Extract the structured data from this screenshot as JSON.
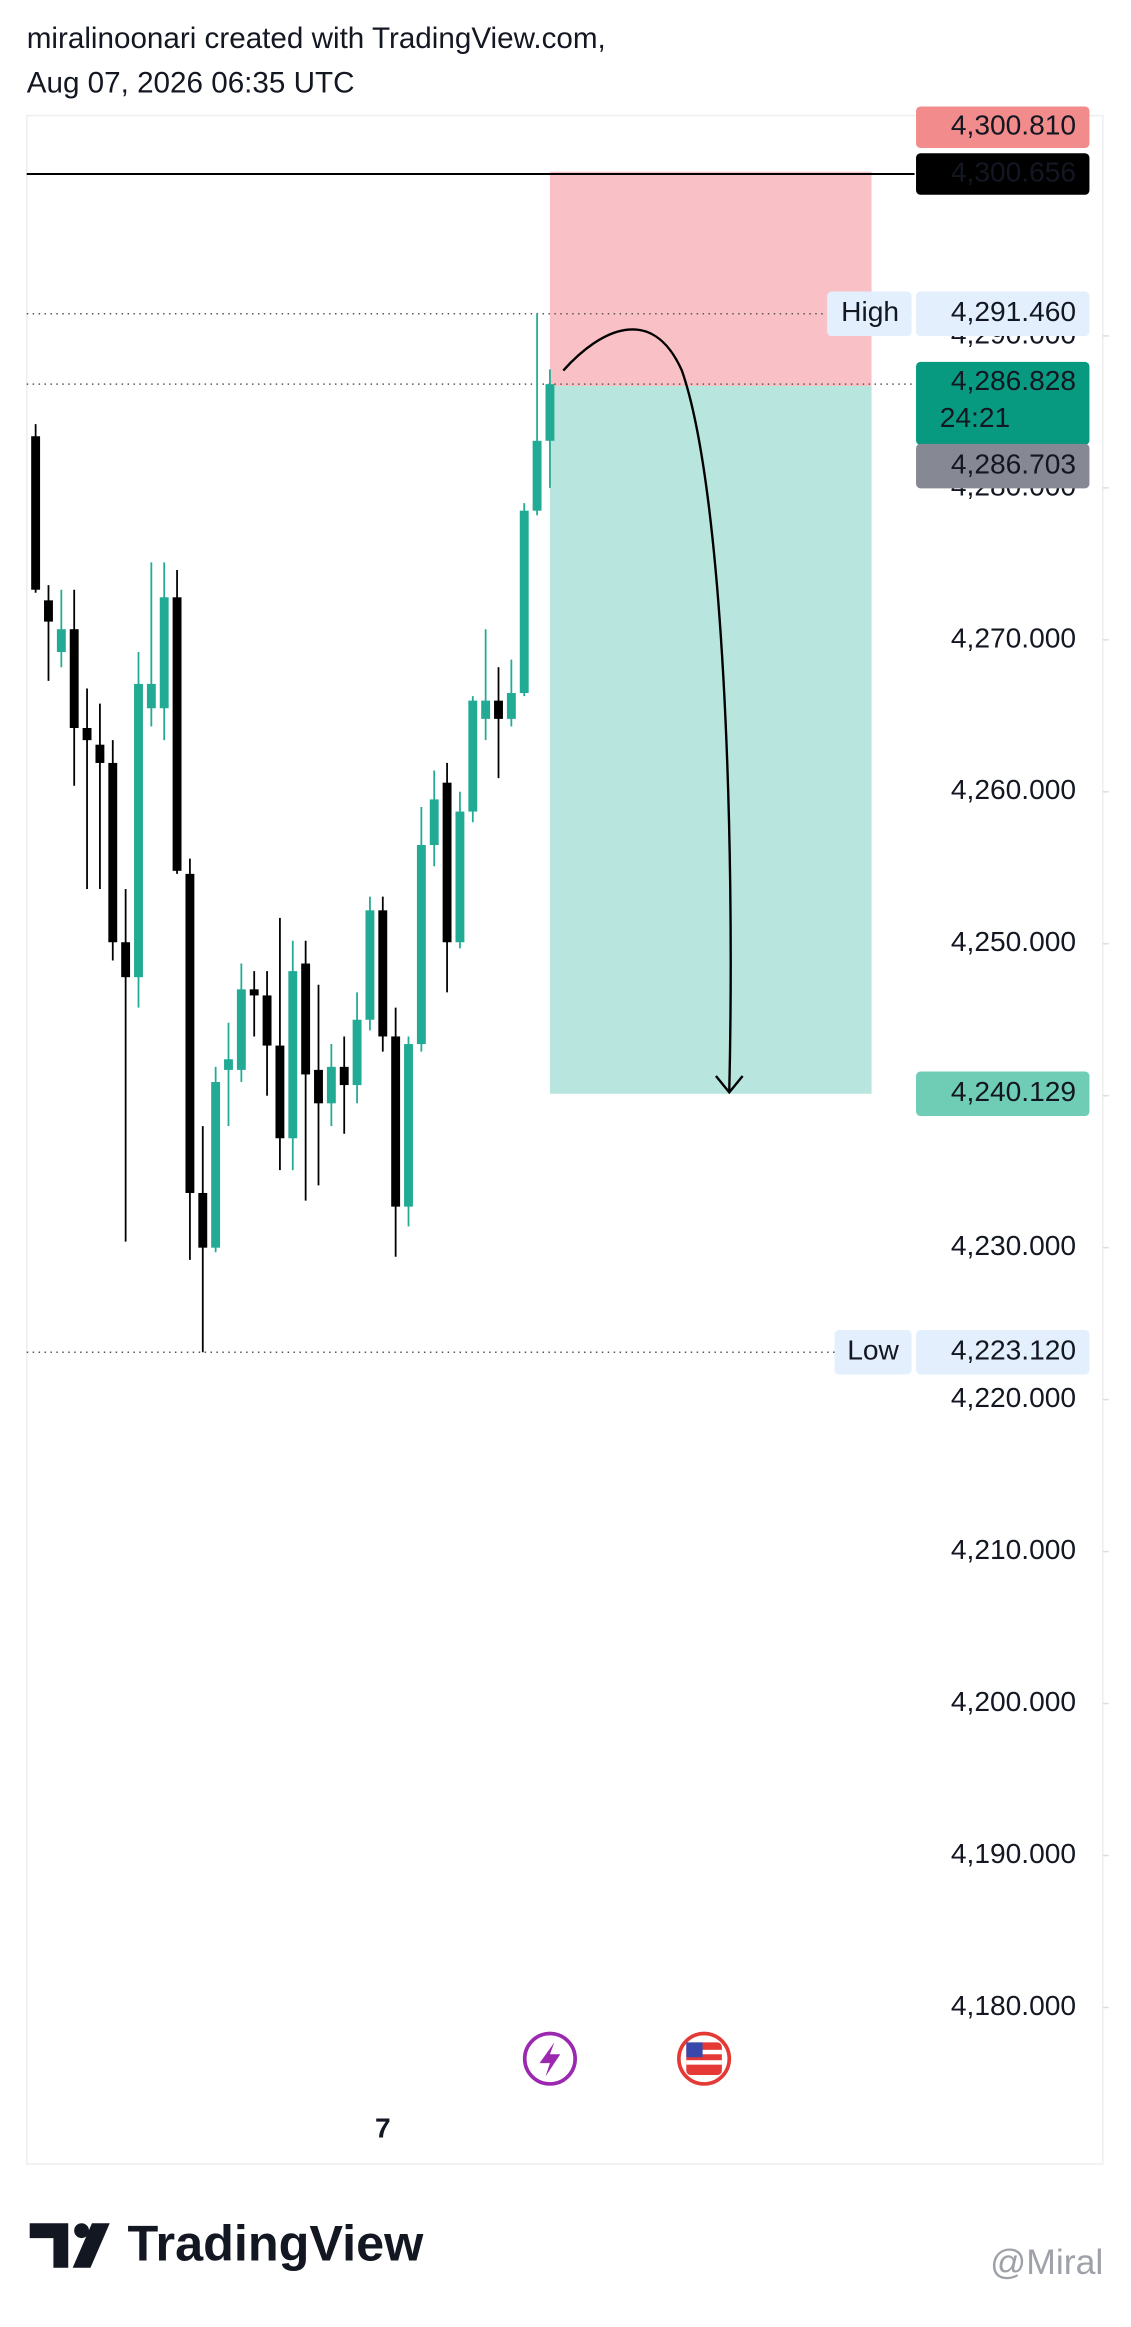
{
  "header": {
    "author": "miralinoonari created with TradingView.com,",
    "date": "Aug 07, 2026 06:35 UTC"
  },
  "footer": {
    "brand": "TradingView",
    "watermark": "@Miral"
  },
  "chart_data": {
    "type": "candlestick",
    "up_color": "#22ab94",
    "down_color": "#000000",
    "categories": [
      null,
      null,
      null,
      null,
      null,
      null,
      null,
      null,
      null,
      null,
      null,
      null,
      null,
      null,
      null,
      null,
      null,
      null,
      null,
      null,
      null,
      null,
      null,
      null,
      null,
      null,
      null,
      "7",
      null,
      null,
      null,
      null,
      null,
      null,
      null,
      null,
      null,
      null,
      null,
      null,
      null
    ],
    "open": [
      4283.4,
      4272.6,
      4269.2,
      4270.7,
      4264.2,
      4263.1,
      4261.9,
      4250.1,
      4247.8,
      4265.5,
      4265.5,
      4272.8,
      4254.6,
      4233.6,
      4230.0,
      4241.7,
      4241.7,
      4247.0,
      4246.6,
      4243.3,
      4237.2,
      4248.7,
      4241.7,
      4239.5,
      4241.9,
      4240.7,
      4245.0,
      4252.2,
      4243.9,
      4232.7,
      4243.4,
      4256.5,
      4260.6,
      4250.1,
      4258.7,
      4264.8,
      4266.0,
      4264.8,
      4266.5,
      4278.5,
      4283.1
    ],
    "high": [
      4284.2,
      4273.6,
      4273.3,
      4273.3,
      4266.8,
      4265.8,
      4263.4,
      4253.6,
      4269.2,
      4275.1,
      4275.1,
      4274.6,
      4255.6,
      4238.0,
      4241.9,
      4244.8,
      4248.7,
      4248.2,
      4248.2,
      4251.7,
      4250.2,
      4250.2,
      4247.3,
      4243.4,
      4243.9,
      4246.8,
      4253.1,
      4253.1,
      4245.8,
      4243.9,
      4259.0,
      4261.4,
      4261.9,
      4260.0,
      4266.3,
      4270.7,
      4268.2,
      4268.7,
      4279.0,
      4291.46,
      4287.8
    ],
    "low": [
      4273.1,
      4267.3,
      4268.2,
      4260.4,
      4253.6,
      4253.6,
      4248.9,
      4230.4,
      4245.8,
      4264.3,
      4263.4,
      4254.6,
      4229.2,
      4223.12,
      4229.7,
      4238.0,
      4240.9,
      4243.9,
      4240.0,
      4235.1,
      4235.1,
      4233.1,
      4234.1,
      4238.0,
      4237.5,
      4239.5,
      4244.3,
      4242.9,
      4229.4,
      4231.4,
      4242.9,
      4255.1,
      4246.8,
      4249.7,
      4258.0,
      4263.4,
      4260.9,
      4264.3,
      4266.3,
      4278.2,
      4280.0
    ],
    "close": [
      4273.3,
      4271.2,
      4270.7,
      4264.2,
      4263.4,
      4261.9,
      4250.1,
      4247.8,
      4267.1,
      4267.1,
      4272.8,
      4254.8,
      4233.6,
      4230.0,
      4240.9,
      4242.4,
      4247.0,
      4246.6,
      4243.3,
      4237.2,
      4248.2,
      4241.4,
      4239.5,
      4241.9,
      4240.7,
      4245.0,
      4252.2,
      4243.9,
      4232.7,
      4243.4,
      4256.5,
      4259.5,
      4250.1,
      4258.7,
      4266.0,
      4266.0,
      4264.8,
      4266.5,
      4278.5,
      4283.1,
      4286.828
    ],
    "ylim": [
      4169.7,
      4304.5
    ],
    "yticks": [
      {
        "value": 4180,
        "label": "4,180.000"
      },
      {
        "value": 4190,
        "label": "4,190.000"
      },
      {
        "value": 4200,
        "label": "4,200.000"
      },
      {
        "value": 4210,
        "label": "4,210.000"
      },
      {
        "value": 4220,
        "label": "4,220.000"
      },
      {
        "value": 4230,
        "label": "4,230.000"
      },
      {
        "value": 4240,
        "label": "4,240.000"
      },
      {
        "value": 4250,
        "label": "4,250.000"
      },
      {
        "value": 4260,
        "label": "4,260.000"
      },
      {
        "value": 4270,
        "label": "4,270.000"
      },
      {
        "value": 4280,
        "label": "4,280.000"
      },
      {
        "value": 4290,
        "label": "4,290.000"
      }
    ],
    "position": {
      "stop": {
        "value": 4300.81,
        "label": "4,300.810",
        "color": "#f28b8b"
      },
      "entry": {
        "value": 4286.703,
        "label": "4,286.703",
        "color": "#868993"
      },
      "target": {
        "value": 4240.129,
        "label": "4,240.129",
        "color": "#6fcdb5"
      }
    },
    "line": {
      "value": 4300.656,
      "label": "4,300.656",
      "color": "#000000"
    },
    "last_price": {
      "value": 4286.828,
      "label": "4,286.828",
      "countdown": "24:21",
      "color": "#089981"
    },
    "high_marker": {
      "tag": "High",
      "value": 4291.46,
      "label": "4,291.460"
    },
    "low_marker": {
      "tag": "Low",
      "value": 4223.12,
      "label": "4,223.120"
    }
  }
}
